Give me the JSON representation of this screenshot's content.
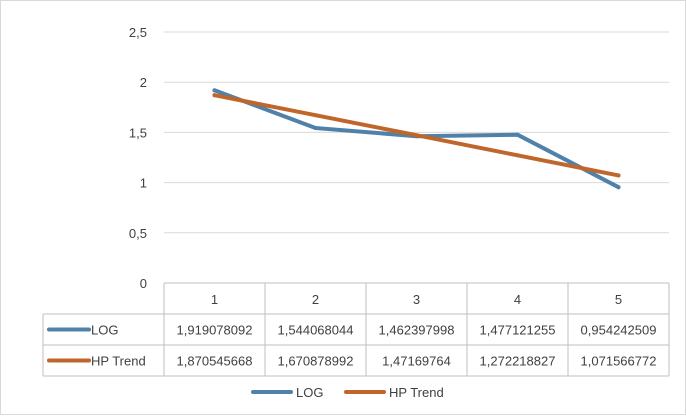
{
  "chart_data": {
    "type": "line",
    "title": "",
    "xlabel": "",
    "ylabel": "",
    "categories": [
      "1",
      "2",
      "3",
      "4",
      "5"
    ],
    "ylim": [
      0,
      2.5
    ],
    "y_ticks": [
      "0",
      "0,5",
      "1",
      "1,5",
      "2",
      "2,5"
    ],
    "grid": true,
    "legend_placement": "bottom",
    "data_table": true,
    "series": [
      {
        "name": "LOG",
        "color": "#4f81a9",
        "values": [
          1.919078092,
          1.544068044,
          1.462397998,
          1.477121255,
          0.954242509
        ],
        "labels": [
          "1,919078092",
          "1,544068044",
          "1,462397998",
          "1,477121255",
          "0,954242509"
        ]
      },
      {
        "name": "HP Trend",
        "color": "#c0662b",
        "values": [
          1.870545668,
          1.670878992,
          1.47169764,
          1.272218827,
          1.071566772
        ],
        "labels": [
          "1,870545668",
          "1,670878992",
          "1,47169764",
          "1,272218827",
          "1,071566772"
        ]
      }
    ]
  }
}
